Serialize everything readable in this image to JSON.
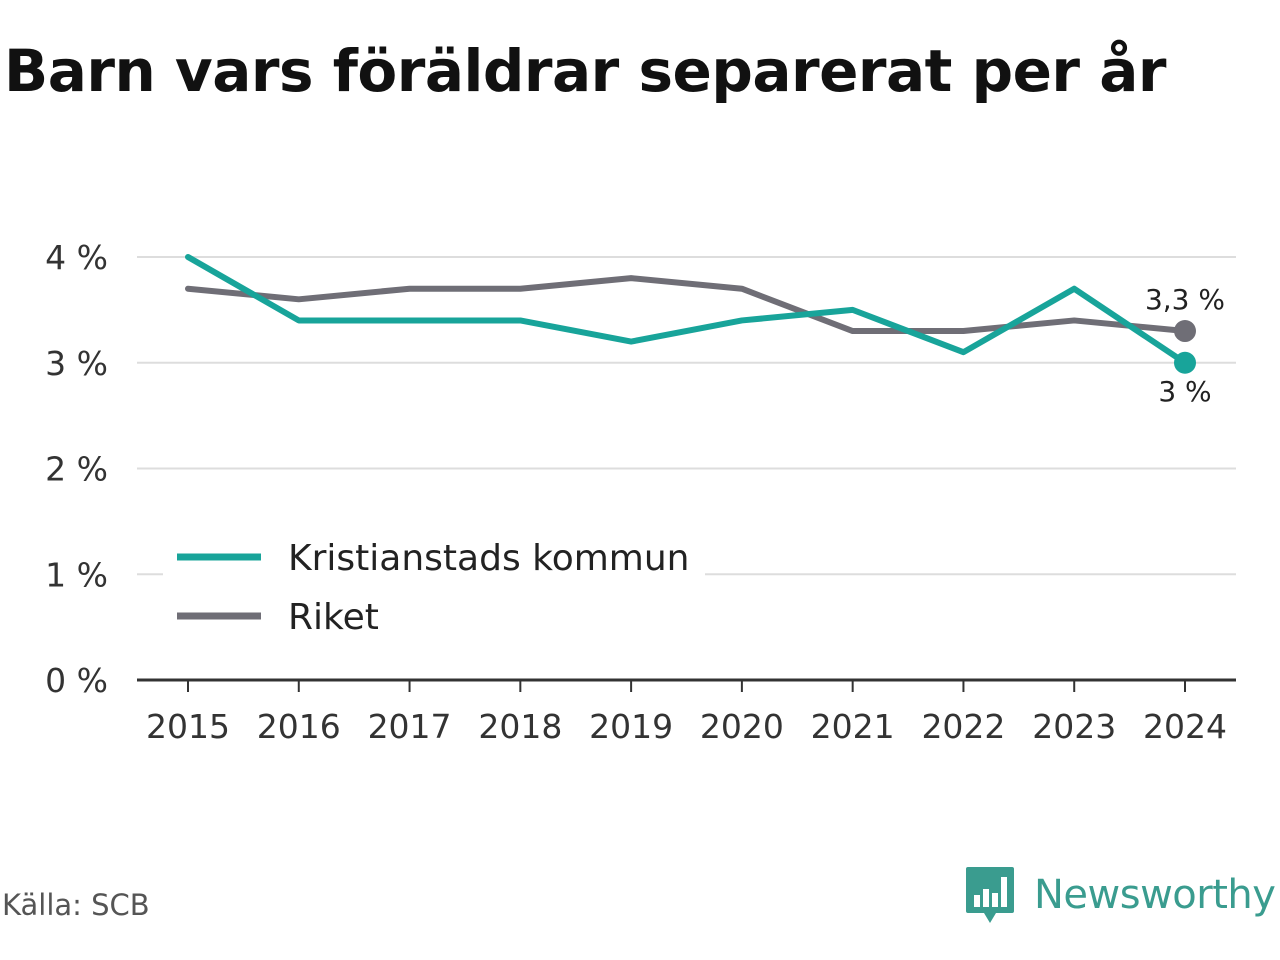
{
  "title": "Barn vars föräldrar separerat per år",
  "source": "Källa: SCB",
  "brand": {
    "name": "Newsworthy",
    "icon": "bar-chart-bubble-icon",
    "color": "#3a9c8f"
  },
  "chart_data": {
    "type": "line",
    "title": "Barn vars föräldrar separerat per år",
    "xlabel": "",
    "ylabel": "",
    "categories": [
      "2015",
      "2016",
      "2017",
      "2018",
      "2019",
      "2020",
      "2021",
      "2022",
      "2023",
      "2024"
    ],
    "ylim": [
      0,
      4
    ],
    "yticks": [
      0,
      1,
      2,
      3,
      4
    ],
    "ytick_labels": [
      "0 %",
      "1 %",
      "2 %",
      "3 %",
      "4 %"
    ],
    "grid": true,
    "legend_position": "lower-left",
    "series": [
      {
        "name": "Kristianstads kommun",
        "color": "#18a49a",
        "values": [
          4.0,
          3.4,
          3.4,
          3.4,
          3.2,
          3.4,
          3.5,
          3.1,
          3.7,
          3.0
        ],
        "end_label": "3 %"
      },
      {
        "name": "Riket",
        "color": "#6f6e76",
        "values": [
          3.7,
          3.6,
          3.7,
          3.7,
          3.8,
          3.7,
          3.3,
          3.3,
          3.4,
          3.3
        ],
        "end_label": "3,3 %"
      }
    ]
  }
}
